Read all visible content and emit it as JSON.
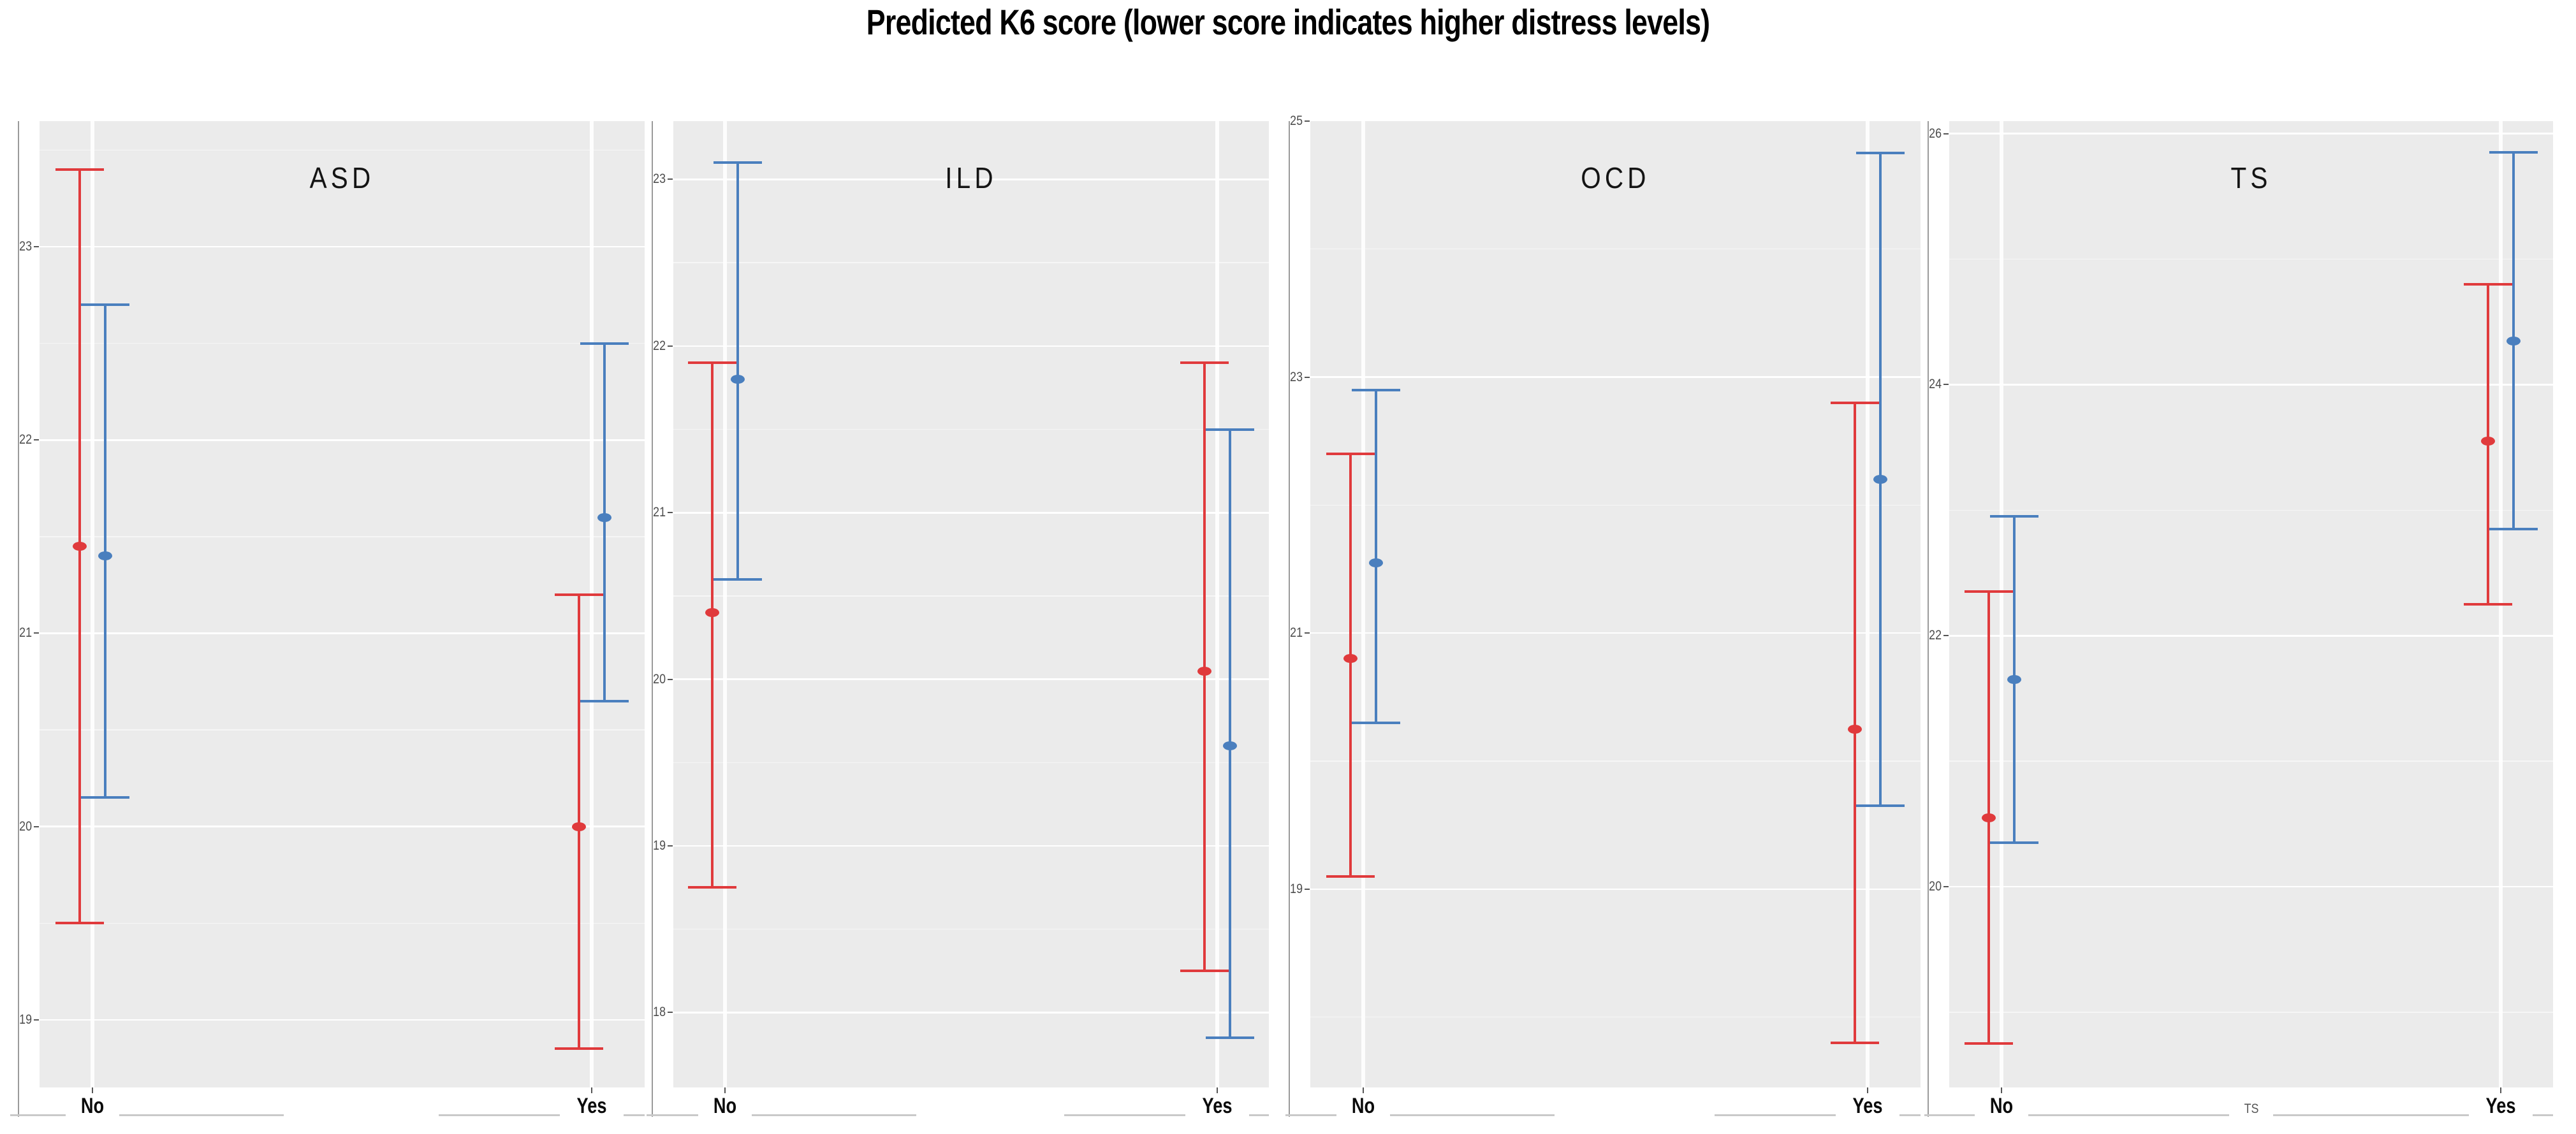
{
  "chart_data": {
    "type": "scatter",
    "subtype": "pointrange-errorbar-faceted",
    "title": "Predicted K6 score (lower score indicates higher distress levels)",
    "categories": [
      "No",
      "Yes"
    ],
    "legend": "none",
    "grid": "on",
    "colors": {
      "red_series": "#e03a3c",
      "blue_series": "#4a7fbe",
      "panel_background": "#ebebeb",
      "gridline": "#ffffff",
      "axis_text": "#4d4d4d",
      "axis_line": "#9a9a9a",
      "x_axis_rule": "#c9c9c9"
    },
    "panels": [
      {
        "label": "ASD",
        "ylim": [
          18.65,
          23.65
        ],
        "yticks_labeled": [
          19,
          20,
          21,
          22,
          23
        ],
        "yticks_minor": [
          19.5,
          20.5,
          21.5,
          22.5,
          23.5
        ],
        "points": [
          {
            "category": "No",
            "series": "red",
            "y": 21.45,
            "ymin": 19.5,
            "ymax": 23.4
          },
          {
            "category": "No",
            "series": "blue",
            "y": 21.4,
            "ymin": 20.15,
            "ymax": 22.7
          },
          {
            "category": "Yes",
            "series": "red",
            "y": 20.0,
            "ymin": 18.85,
            "ymax": 21.2
          },
          {
            "category": "Yes",
            "series": "blue",
            "y": 21.6,
            "ymin": 20.65,
            "ymax": 22.5
          }
        ]
      },
      {
        "label": "ILD",
        "ylim": [
          17.55,
          23.35
        ],
        "yticks_labeled": [
          18,
          19,
          20,
          21,
          22,
          23
        ],
        "yticks_minor": [
          18.5,
          19.5,
          20.5,
          21.5,
          22.5
        ],
        "points": [
          {
            "category": "No",
            "series": "red",
            "y": 20.4,
            "ymin": 18.75,
            "ymax": 21.9
          },
          {
            "category": "No",
            "series": "blue",
            "y": 21.8,
            "ymin": 20.6,
            "ymax": 23.1
          },
          {
            "category": "Yes",
            "series": "red",
            "y": 20.05,
            "ymin": 18.25,
            "ymax": 21.9
          },
          {
            "category": "Yes",
            "series": "blue",
            "y": 19.6,
            "ymin": 17.85,
            "ymax": 21.5
          }
        ]
      },
      {
        "label": "OCD",
        "ylim": [
          17.45,
          25.0
        ],
        "yticks_labeled": [
          19,
          21,
          23,
          25
        ],
        "yticks_minor": [
          18,
          20,
          22,
          24
        ],
        "points": [
          {
            "category": "No",
            "series": "red",
            "y": 20.8,
            "ymin": 19.1,
            "ymax": 22.4
          },
          {
            "category": "No",
            "series": "blue",
            "y": 21.55,
            "ymin": 20.3,
            "ymax": 22.9
          },
          {
            "category": "Yes",
            "series": "red",
            "y": 20.25,
            "ymin": 17.8,
            "ymax": 22.8
          },
          {
            "category": "Yes",
            "series": "blue",
            "y": 22.2,
            "ymin": 19.65,
            "ymax": 24.75
          }
        ]
      },
      {
        "label": "TS",
        "x_mid_label": "TS",
        "ylim": [
          18.4,
          26.1
        ],
        "yticks_labeled": [
          20,
          22,
          24,
          26
        ],
        "yticks_minor": [
          19,
          21,
          23,
          25
        ],
        "points": [
          {
            "category": "No",
            "series": "red",
            "y": 20.55,
            "ymin": 18.75,
            "ymax": 22.35
          },
          {
            "category": "No",
            "series": "blue",
            "y": 21.65,
            "ymin": 20.35,
            "ymax": 22.95
          },
          {
            "category": "Yes",
            "series": "red",
            "y": 23.55,
            "ymin": 22.25,
            "ymax": 24.8
          },
          {
            "category": "Yes",
            "series": "blue",
            "y": 24.35,
            "ymin": 22.85,
            "ymax": 25.85
          }
        ]
      }
    ]
  }
}
